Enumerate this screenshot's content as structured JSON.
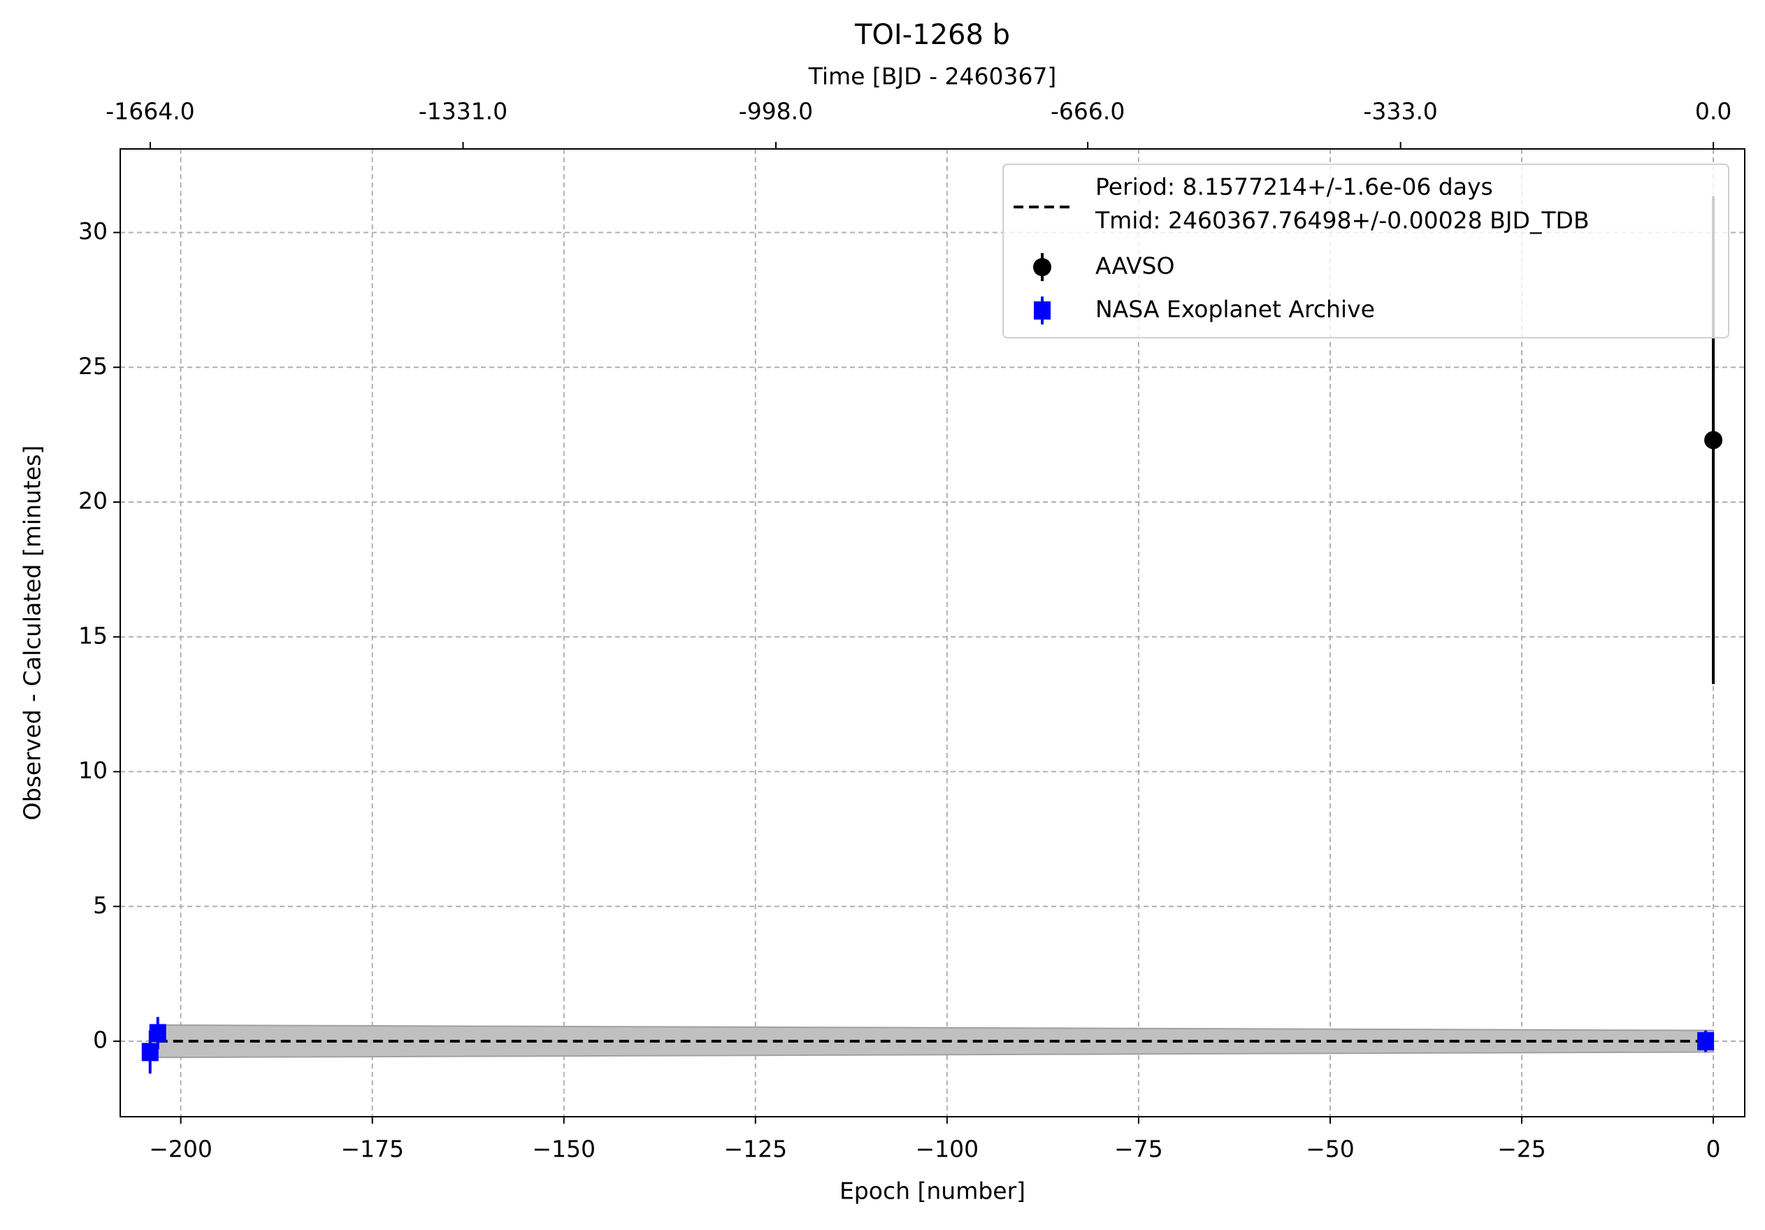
{
  "chart_data": {
    "type": "scatter",
    "title": "TOI-1268 b",
    "xlabel": "Epoch [number]",
    "ylabel": "Observed - Calculated [minutes]",
    "x2label": "Time [BJD - 2460367]",
    "xlim": [
      -207.9,
      4.1
    ],
    "ylim": [
      -2.8,
      33.1
    ],
    "x2lim": [
      -1696,
      33.4
    ],
    "xticks": [
      {
        "value": -200,
        "label": "−200"
      },
      {
        "value": -175,
        "label": "−175"
      },
      {
        "value": -150,
        "label": "−150"
      },
      {
        "value": -125,
        "label": "−125"
      },
      {
        "value": -100,
        "label": "−100"
      },
      {
        "value": -75,
        "label": "−75"
      },
      {
        "value": -50,
        "label": "−50"
      },
      {
        "value": -25,
        "label": "−25"
      },
      0
    ],
    "yticks": [
      0,
      5,
      10,
      15,
      20,
      25,
      30
    ],
    "x2ticks": [
      {
        "value": -1664,
        "label": "-1664.0"
      },
      {
        "value": -1331,
        "label": "-1331.0"
      },
      {
        "value": -998,
        "label": "-998.0"
      },
      {
        "value": -666,
        "label": "-666.0"
      },
      {
        "value": -333,
        "label": "-333.0"
      },
      {
        "value": 0,
        "label": "0.0"
      }
    ],
    "grid": true,
    "legend": "upper right",
    "fit": {
      "label_lines": [
        "Period: 8.1577214+/-1.6e-06 days",
        "Tmid: 2460367.76498+/-0.00028 BJD_TDB"
      ],
      "color": "#000000",
      "band_color": "#c0c0c0",
      "x": [
        -203,
        0
      ],
      "values": [
        0,
        0
      ],
      "band_upper": [
        0.6,
        0.4
      ],
      "band_lower": [
        -0.6,
        -0.4
      ]
    },
    "series": [
      {
        "name": "AAVSO",
        "color": "#000000",
        "marker": "circle",
        "x": [
          0
        ],
        "values": [
          22.3
        ],
        "errors": [
          9.05
        ]
      },
      {
        "name": "NASA Exoplanet Archive",
        "color": "#0000ff",
        "marker": "square",
        "x": [
          -204,
          -203,
          -1
        ],
        "values": [
          -0.4,
          0.3,
          0
        ],
        "errors": [
          0.8,
          0.6,
          0.4
        ]
      }
    ]
  }
}
